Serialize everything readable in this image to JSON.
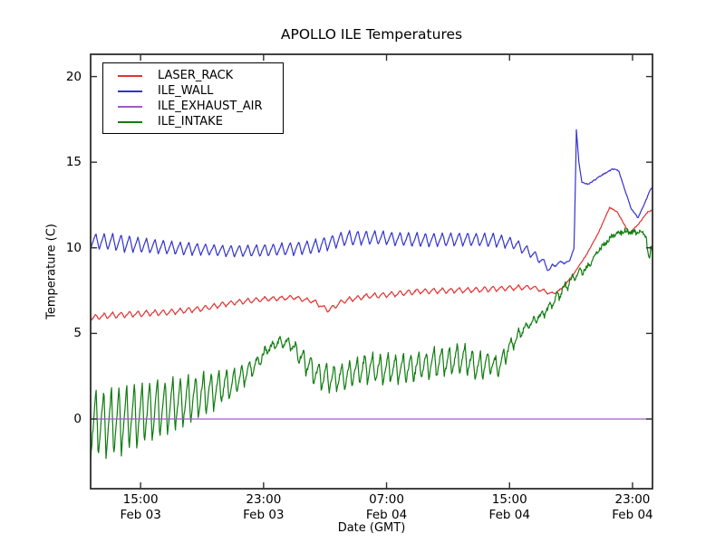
{
  "chart_data": {
    "type": "line",
    "title": "APOLLO ILE Temperatures",
    "xlabel": "Date (GMT)",
    "ylabel": "Temperature (C)",
    "grid": false,
    "legend_position": "upper left",
    "x_unit": "hours since Feb 03 00:00 GMT",
    "xlim": [
      11.75,
      48.3
    ],
    "ylim": [
      -4.07,
      21.3
    ],
    "yticks": [
      0,
      5,
      10,
      15,
      20
    ],
    "xticks": [
      {
        "t": 15,
        "time": "15:00",
        "date": "Feb 03"
      },
      {
        "t": 23,
        "time": "23:00",
        "date": "Feb 03"
      },
      {
        "t": 31,
        "time": "07:00",
        "date": "Feb 04"
      },
      {
        "t": 39,
        "time": "15:00",
        "date": "Feb 04"
      },
      {
        "t": 47,
        "time": "23:00",
        "date": "Feb 04"
      }
    ],
    "draw_order": [
      "LASER_RACK",
      "ILE_WALL",
      "ILE_INTAKE",
      "ILE_EXHAUST_AIR"
    ],
    "series": [
      {
        "name": "LASER_RACK",
        "color": "#e03232",
        "anchors": [
          [
            11.75,
            5.9
          ],
          [
            13,
            6.05
          ],
          [
            15,
            6.15
          ],
          [
            17,
            6.25
          ],
          [
            19,
            6.45
          ],
          [
            21,
            6.8
          ],
          [
            23,
            7.0
          ],
          [
            25,
            7.1
          ],
          [
            26.3,
            6.85
          ],
          [
            27.2,
            6.35
          ],
          [
            28.2,
            6.9
          ],
          [
            29.5,
            7.15
          ],
          [
            31,
            7.25
          ],
          [
            33,
            7.45
          ],
          [
            35,
            7.5
          ],
          [
            37,
            7.55
          ],
          [
            39,
            7.65
          ],
          [
            40.5,
            7.7
          ],
          [
            41.3,
            7.45
          ],
          [
            41.8,
            7.3
          ],
          [
            42.4,
            7.6
          ],
          [
            43.2,
            8.5
          ],
          [
            44,
            9.6
          ],
          [
            44.8,
            10.9
          ],
          [
            45.5,
            12.35
          ],
          [
            46.0,
            12.1
          ],
          [
            46.8,
            10.85
          ],
          [
            47.4,
            11.4
          ],
          [
            48.0,
            12.1
          ],
          [
            48.3,
            12.2
          ]
        ],
        "osc": {
          "period": 0.55,
          "rise": 0.62,
          "amp": [
            [
              11.75,
              0.18
            ],
            [
              20,
              0.16
            ],
            [
              26,
              0.12
            ],
            [
              28,
              0.16
            ],
            [
              40,
              0.15
            ],
            [
              41.5,
              0.1
            ],
            [
              42.3,
              0.05
            ],
            [
              43,
              0
            ]
          ]
        },
        "noise": 0.03
      },
      {
        "name": "ILE_WALL",
        "color": "#3232cf",
        "anchors": [
          [
            11.75,
            10.4
          ],
          [
            13,
            10.35
          ],
          [
            15,
            10.15
          ],
          [
            17,
            10.0
          ],
          [
            19,
            9.9
          ],
          [
            21,
            9.8
          ],
          [
            23,
            9.85
          ],
          [
            25,
            9.95
          ],
          [
            26.5,
            10.1
          ],
          [
            28.3,
            10.55
          ],
          [
            30,
            10.6
          ],
          [
            32,
            10.5
          ],
          [
            34,
            10.45
          ],
          [
            36,
            10.5
          ],
          [
            38,
            10.45
          ],
          [
            39.3,
            10.25
          ],
          [
            40.3,
            9.75
          ],
          [
            41.1,
            9.25
          ],
          [
            41.6,
            8.75
          ],
          [
            42.1,
            9.1
          ],
          [
            42.9,
            9.2
          ],
          [
            43.2,
            10.0
          ],
          [
            43.35,
            16.9
          ],
          [
            43.5,
            15.1
          ],
          [
            43.7,
            13.85
          ],
          [
            44.1,
            13.7
          ],
          [
            44.6,
            14.0
          ],
          [
            45.2,
            14.35
          ],
          [
            45.7,
            14.6
          ],
          [
            46.1,
            14.5
          ],
          [
            46.5,
            13.4
          ],
          [
            46.9,
            12.3
          ],
          [
            47.35,
            11.75
          ],
          [
            47.8,
            12.6
          ],
          [
            48.1,
            13.3
          ],
          [
            48.3,
            13.55
          ]
        ],
        "osc": {
          "period": 0.55,
          "rise": 0.62,
          "amp": [
            [
              11.75,
              0.45
            ],
            [
              14,
              0.5
            ],
            [
              16,
              0.42
            ],
            [
              20,
              0.32
            ],
            [
              23,
              0.35
            ],
            [
              28.3,
              0.45
            ],
            [
              31,
              0.4
            ],
            [
              38,
              0.4
            ],
            [
              39.5,
              0.33
            ],
            [
              40.5,
              0.28
            ],
            [
              41.5,
              0.2
            ],
            [
              42.5,
              0.08
            ],
            [
              43.0,
              0
            ]
          ]
        },
        "noise": 0.03
      },
      {
        "name": "ILE_EXHAUST_AIR",
        "color": "#a05ac8",
        "anchors": [
          [
            11.75,
            0
          ],
          [
            48.3,
            0
          ]
        ],
        "osc": null,
        "noise": 0
      },
      {
        "name": "ILE_INTAKE",
        "color": "#0f7d0f",
        "anchors": [
          [
            11.75,
            -0.3
          ],
          [
            13,
            -0.2
          ],
          [
            14.7,
            0.2
          ],
          [
            16.5,
            0.7
          ],
          [
            17.7,
            1.0
          ],
          [
            19.5,
            1.6
          ],
          [
            21.2,
            2.2
          ],
          [
            22.4,
            3.1
          ],
          [
            23.3,
            4.1
          ],
          [
            23.9,
            4.5
          ],
          [
            24.6,
            4.5
          ],
          [
            25.4,
            3.7
          ],
          [
            26.3,
            2.7
          ],
          [
            27.2,
            2.35
          ],
          [
            28.3,
            2.5
          ],
          [
            29.5,
            3.0
          ],
          [
            30.7,
            2.9
          ],
          [
            32.5,
            3.0
          ],
          [
            33.5,
            3.15
          ],
          [
            34.3,
            3.3
          ],
          [
            35.5,
            3.45
          ],
          [
            36.1,
            3.55
          ],
          [
            36.9,
            3.05
          ],
          [
            37.8,
            3.3
          ],
          [
            38.2,
            2.95
          ],
          [
            39.0,
            4.2
          ],
          [
            39.9,
            5.25
          ],
          [
            40.8,
            5.9
          ],
          [
            41.5,
            6.4
          ],
          [
            42.5,
            7.6
          ],
          [
            43.2,
            8.3
          ],
          [
            44.1,
            8.9
          ],
          [
            44.7,
            9.75
          ],
          [
            45.4,
            10.45
          ],
          [
            45.9,
            10.8
          ],
          [
            46.5,
            11.0
          ],
          [
            47.1,
            10.9
          ],
          [
            47.6,
            10.95
          ],
          [
            47.9,
            10.55
          ],
          [
            48.0,
            9.6
          ],
          [
            48.1,
            9.4
          ],
          [
            48.2,
            10.1
          ],
          [
            48.3,
            9.9
          ]
        ],
        "osc": {
          "period": 0.5,
          "rise": 0.72,
          "amp": [
            [
              11.75,
              2.1
            ],
            [
              14,
              2.0
            ],
            [
              16,
              1.8
            ],
            [
              17.7,
              1.5
            ],
            [
              19.5,
              1.2
            ],
            [
              21.2,
              0.8
            ],
            [
              22.5,
              0.45
            ],
            [
              23.5,
              0.25
            ],
            [
              24.6,
              0.3
            ],
            [
              25.5,
              0.7
            ],
            [
              26.5,
              0.8
            ],
            [
              27.5,
              0.8
            ],
            [
              29,
              0.85
            ],
            [
              31,
              0.85
            ],
            [
              33,
              0.85
            ],
            [
              35,
              0.9
            ],
            [
              36.5,
              0.9
            ],
            [
              38,
              0.7
            ],
            [
              39,
              0.45
            ],
            [
              40,
              0.3
            ],
            [
              41,
              0.25
            ],
            [
              42,
              0.3
            ],
            [
              43,
              0.35
            ],
            [
              43.8,
              0.2
            ],
            [
              44.5,
              0.12
            ],
            [
              45.5,
              0.08
            ],
            [
              46.5,
              0.06
            ],
            [
              48.3,
              0.05
            ]
          ]
        },
        "noise": 0.14
      }
    ],
    "frame_color": "#2e2e2e"
  }
}
